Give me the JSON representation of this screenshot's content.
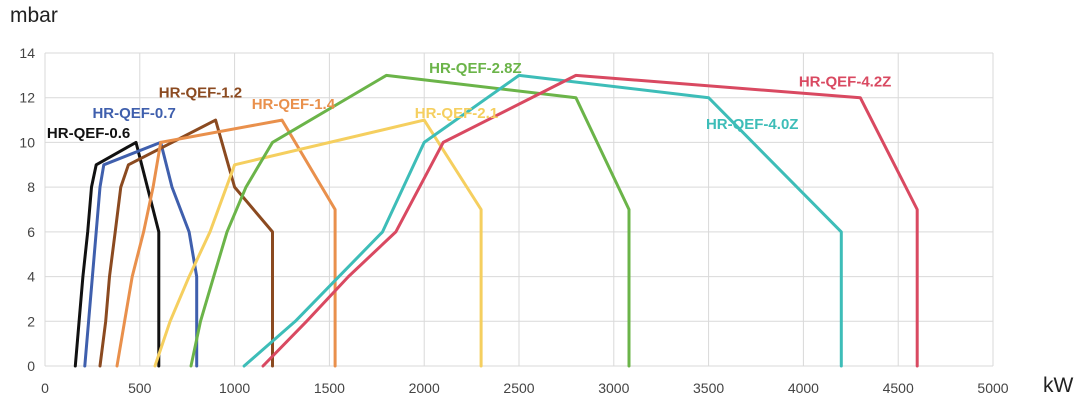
{
  "chart_data": {
    "type": "line",
    "title": "",
    "xlabel": "kW",
    "ylabel": "mbar",
    "xlim": [
      0,
      5000
    ],
    "ylim": [
      0,
      14
    ],
    "x_ticks": [
      0,
      500,
      1000,
      1500,
      2000,
      2500,
      3000,
      3500,
      4000,
      4500,
      5000
    ],
    "y_ticks": [
      0,
      2,
      4,
      6,
      8,
      10,
      12,
      14
    ],
    "grid": true,
    "legend": "none",
    "series": [
      {
        "name": "HR-QEF-0.6",
        "color": "#111111",
        "points": [
          [
            160,
            0
          ],
          [
            180,
            2
          ],
          [
            200,
            4
          ],
          [
            225,
            6
          ],
          [
            245,
            8
          ],
          [
            270,
            9
          ],
          [
            480,
            10
          ],
          [
            540,
            8
          ],
          [
            600,
            6
          ],
          [
            600,
            0
          ]
        ]
      },
      {
        "name": "HR-QEF-0.7",
        "color": "#3f5fad",
        "points": [
          [
            210,
            0
          ],
          [
            230,
            2
          ],
          [
            250,
            4
          ],
          [
            270,
            6
          ],
          [
            290,
            8
          ],
          [
            310,
            9
          ],
          [
            610,
            10
          ],
          [
            670,
            8
          ],
          [
            760,
            6
          ],
          [
            800,
            4
          ],
          [
            800,
            0
          ]
        ]
      },
      {
        "name": "HR-QEF-1.2",
        "color": "#8b4a20",
        "points": [
          [
            290,
            0
          ],
          [
            320,
            2
          ],
          [
            340,
            4
          ],
          [
            370,
            6
          ],
          [
            400,
            8
          ],
          [
            440,
            9
          ],
          [
            900,
            11
          ],
          [
            1000,
            8
          ],
          [
            1200,
            6
          ],
          [
            1200,
            0
          ]
        ]
      },
      {
        "name": "HR-QEF-1.4",
        "color": "#e9904c",
        "points": [
          [
            380,
            0
          ],
          [
            420,
            2
          ],
          [
            460,
            4
          ],
          [
            520,
            6
          ],
          [
            570,
            8
          ],
          [
            610,
            10
          ],
          [
            1250,
            11
          ],
          [
            1530,
            7
          ],
          [
            1530,
            0
          ]
        ]
      },
      {
        "name": "HR-QEF-2.1",
        "color": "#f5cf5f",
        "points": [
          [
            580,
            0
          ],
          [
            660,
            2
          ],
          [
            760,
            4
          ],
          [
            870,
            6
          ],
          [
            1000,
            9
          ],
          [
            2000,
            11
          ],
          [
            2300,
            7
          ],
          [
            2300,
            0
          ]
        ]
      },
      {
        "name": "HR-QEF-2.8Z",
        "color": "#6bb449",
        "points": [
          [
            770,
            0
          ],
          [
            820,
            2
          ],
          [
            890,
            4
          ],
          [
            960,
            6
          ],
          [
            1060,
            8
          ],
          [
            1200,
            10
          ],
          [
            1800,
            13
          ],
          [
            2800,
            12
          ],
          [
            3080,
            7
          ],
          [
            3080,
            0
          ]
        ]
      },
      {
        "name": "HR-QEF-4.0Z",
        "color": "#3dbdb8",
        "points": [
          [
            1050,
            0
          ],
          [
            1320,
            2
          ],
          [
            1550,
            4
          ],
          [
            1780,
            6
          ],
          [
            2000,
            10
          ],
          [
            2500,
            13
          ],
          [
            3500,
            12
          ],
          [
            4200,
            6
          ],
          [
            4200,
            0
          ]
        ]
      },
      {
        "name": "HR-QEF-4.2Z",
        "color": "#d94961",
        "points": [
          [
            1150,
            0
          ],
          [
            1380,
            2
          ],
          [
            1600,
            4
          ],
          [
            1850,
            6
          ],
          [
            2100,
            10
          ],
          [
            2800,
            13
          ],
          [
            4300,
            12
          ],
          [
            4600,
            7
          ],
          [
            4600,
            0
          ]
        ]
      }
    ],
    "annotations": [
      {
        "text": "HR-QEF-0.6",
        "color": "#111111",
        "x": 230,
        "y": 10.2
      },
      {
        "text": "HR-QEF-0.7",
        "color": "#3f5fad",
        "x": 470,
        "y": 11.1
      },
      {
        "text": "HR-QEF-1.2",
        "color": "#8b4a20",
        "x": 820,
        "y": 12.0
      },
      {
        "text": "HR-QEF-1.4",
        "color": "#e9904c",
        "x": 1310,
        "y": 11.5
      },
      {
        "text": "HR-QEF-2.1",
        "color": "#f5cf5f",
        "x": 2170,
        "y": 11.1
      },
      {
        "text": "HR-QEF-2.8Z",
        "color": "#6bb449",
        "x": 2270,
        "y": 13.1
      },
      {
        "text": "HR-QEF-4.0Z",
        "color": "#3dbdb8",
        "x": 3730,
        "y": 10.6
      },
      {
        "text": "HR-QEF-4.2Z",
        "color": "#d94961",
        "x": 4220,
        "y": 12.5
      }
    ]
  }
}
